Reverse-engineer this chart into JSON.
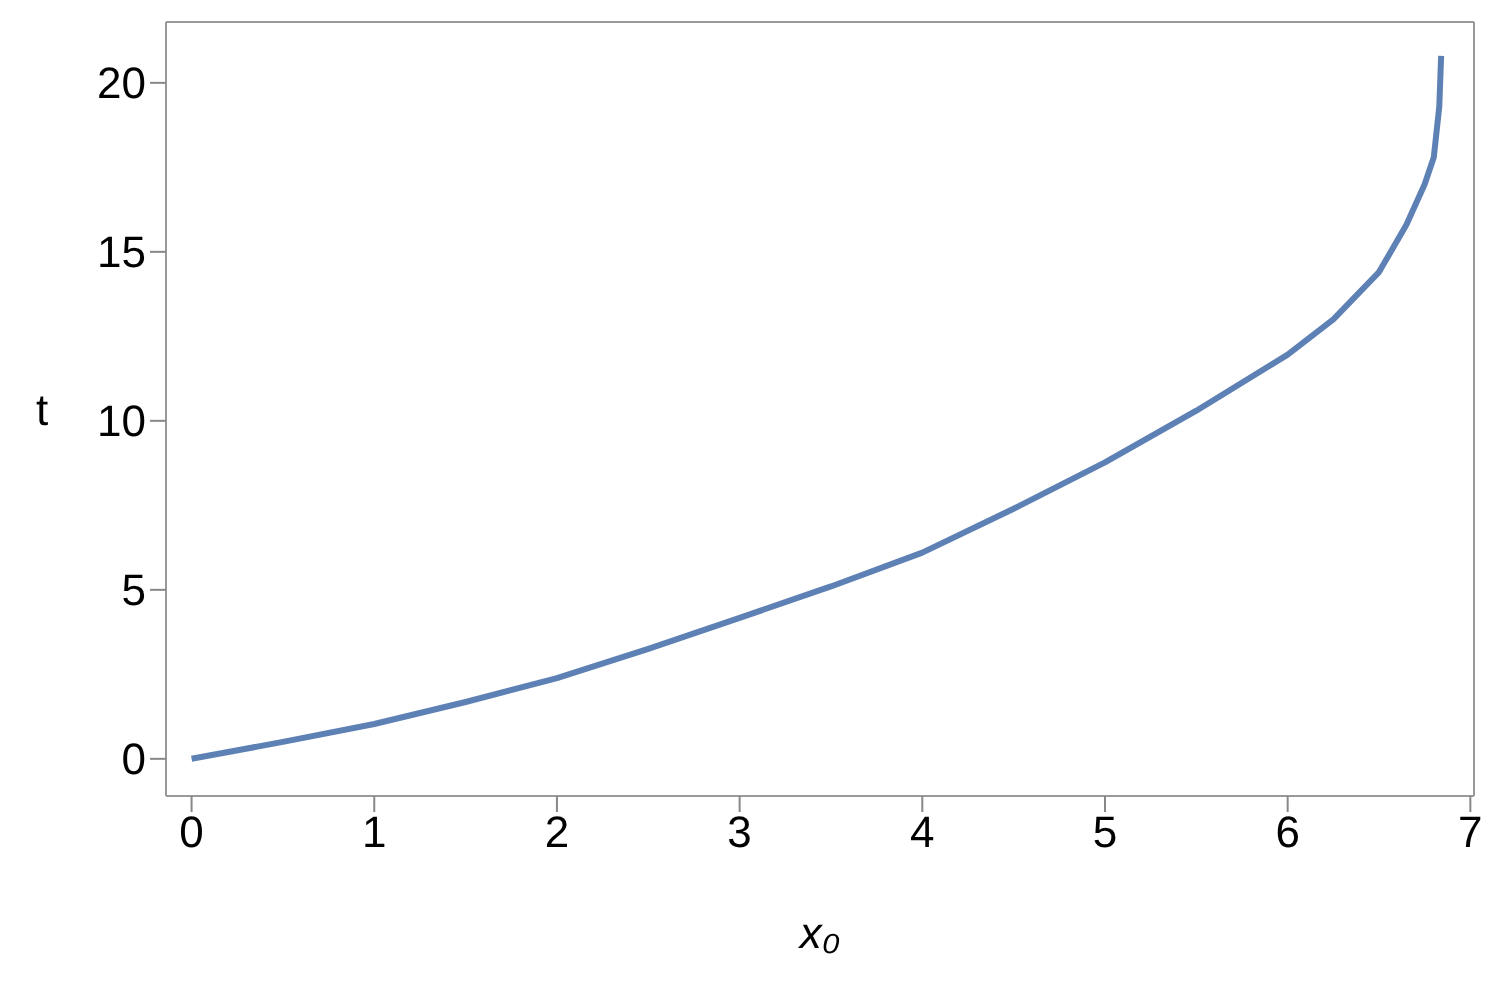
{
  "chart_data": {
    "type": "line",
    "xlabel": "x₀",
    "ylabel": "t",
    "x": [
      0,
      0.5,
      1,
      1.5,
      2,
      2.5,
      3,
      3.5,
      4,
      4.5,
      5,
      5.5,
      6,
      6.25,
      6.5,
      6.65,
      6.75,
      6.8,
      6.83,
      6.84
    ],
    "series": [
      {
        "color": "#5e81b5",
        "values": [
          0,
          0.5,
          1.03,
          1.68,
          2.39,
          3.25,
          4.17,
          5.1,
          6.1,
          7.4,
          8.77,
          10.3,
          11.96,
          13.0,
          14.4,
          15.8,
          17.0,
          17.8,
          19.3,
          20.8
        ]
      }
    ],
    "xlim": [
      -0.14,
      7.02
    ],
    "ylim": [
      -1.1,
      21.8
    ],
    "xticks": [
      0,
      1,
      2,
      3,
      4,
      5,
      6,
      7
    ],
    "yticks": [
      0,
      5,
      10,
      15,
      20
    ],
    "grid": false,
    "marker": "none",
    "line_style": "solid"
  }
}
